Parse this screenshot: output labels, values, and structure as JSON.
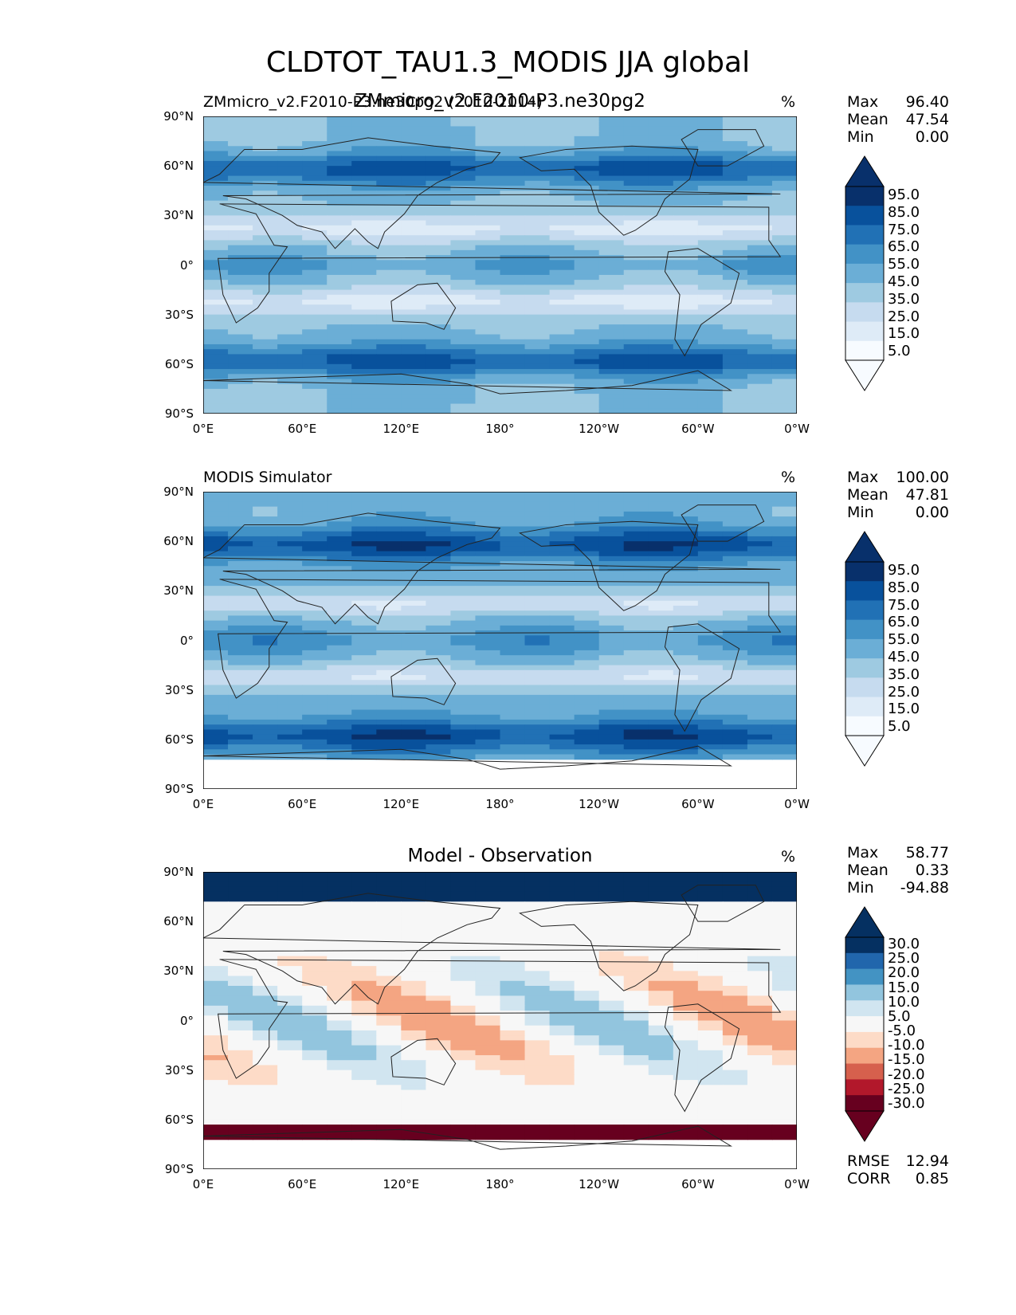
{
  "figure_title": "CLDTOT_TAU1.3_MODIS JJA global",
  "lat_labels": [
    "90°N",
    "60°N",
    "30°N",
    "0°",
    "30°S",
    "60°S",
    "90°S"
  ],
  "lon_labels": [
    "0°E",
    "60°E",
    "120°E",
    "180°",
    "120°W",
    "60°W",
    "0°W"
  ],
  "panels": [
    {
      "left_title": "ZMmicro_v2.F2010-P3.ne30pg2 (2010-2014)",
      "center_title": "ZMmicro_v2.F2010-P3.ne30pg2",
      "units": "%",
      "stats": [
        {
          "label": "Max",
          "value": "96.40"
        },
        {
          "label": "Mean",
          "value": "47.54"
        },
        {
          "label": "Min",
          "value": "0.00"
        }
      ],
      "colorbar_ticks": [
        "95.0",
        "85.0",
        "75.0",
        "65.0",
        "55.0",
        "45.0",
        "35.0",
        "25.0",
        "15.0",
        "5.0"
      ],
      "colors": [
        "#08306b",
        "#08519c",
        "#2171b5",
        "#4292c6",
        "#6baed6",
        "#9ecae1",
        "#c6dbef",
        "#deebf7",
        "#f7fbff"
      ],
      "masked_below_lat": -90
    },
    {
      "left_title": "MODIS Simulator",
      "center_title": "",
      "units": "%",
      "stats": [
        {
          "label": "Max",
          "value": "100.00"
        },
        {
          "label": "Mean",
          "value": "47.81"
        },
        {
          "label": "Min",
          "value": "0.00"
        }
      ],
      "colorbar_ticks": [
        "95.0",
        "85.0",
        "75.0",
        "65.0",
        "55.0",
        "45.0",
        "35.0",
        "25.0",
        "15.0",
        "5.0"
      ],
      "colors": [
        "#08306b",
        "#08519c",
        "#2171b5",
        "#4292c6",
        "#6baed6",
        "#9ecae1",
        "#c6dbef",
        "#deebf7",
        "#f7fbff"
      ],
      "masked_below_lat": -72
    },
    {
      "left_title": "",
      "center_title": "Model - Observation",
      "units": "%",
      "stats": [
        {
          "label": "Max",
          "value": "58.77"
        },
        {
          "label": "Mean",
          "value": "0.33"
        },
        {
          "label": "Min",
          "value": "-94.88"
        }
      ],
      "colorbar_ticks": [
        "30.0",
        "25.0",
        "20.0",
        "15.0",
        "10.0",
        "5.0",
        "-5.0",
        "-10.0",
        "-15.0",
        "-20.0",
        "-25.0",
        "-30.0"
      ],
      "colors": [
        "#053061",
        "#2166ac",
        "#4393c3",
        "#92c5de",
        "#d1e5f0",
        "#f7f7f7",
        "#fddbc7",
        "#f4a582",
        "#d6604d",
        "#b2182b",
        "#67001f"
      ],
      "masked_below_lat": -72,
      "footer": [
        {
          "label": "RMSE",
          "value": "12.94"
        },
        {
          "label": "CORR",
          "value": "0.85"
        }
      ]
    }
  ]
}
